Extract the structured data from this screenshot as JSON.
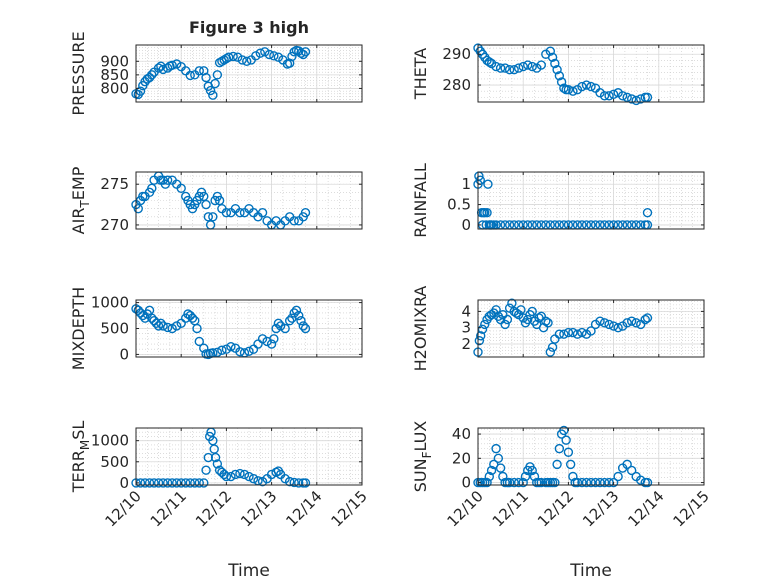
{
  "figure": {
    "title": "Figure 3 high"
  },
  "chart_data": [
    {
      "type": "scatter",
      "panel": "pressure",
      "title": "Figure 3 high",
      "ylabel": "PRESSURE",
      "ylabel_sub": "",
      "ylabel_tail": "",
      "xlabel": "",
      "show_xticklabels": false,
      "xlim": [
        0,
        5
      ],
      "ylim": [
        750,
        960
      ],
      "yticks": [
        800,
        850,
        900
      ],
      "ytick_labels": [
        "800",
        "850",
        "900"
      ],
      "grid": true,
      "color": "#0072BD",
      "series": [
        {
          "x": [
            0.0,
            0.05,
            0.1,
            0.15,
            0.2,
            0.25,
            0.3,
            0.35,
            0.4,
            0.5,
            0.55,
            0.6,
            0.7,
            0.75,
            0.8,
            0.9,
            1.0,
            1.1,
            1.2,
            1.3,
            1.4,
            1.5,
            1.55,
            1.6,
            1.65,
            1.7,
            1.75,
            1.8,
            1.85,
            1.9,
            1.95,
            2.0,
            2.05,
            2.15,
            2.25,
            2.35,
            2.45,
            2.55,
            2.65,
            2.75,
            2.85,
            2.95,
            3.05,
            3.15,
            3.25,
            3.35,
            3.4,
            3.45,
            3.5,
            3.55,
            3.6,
            3.65,
            3.7,
            3.75
          ],
          "y": [
            780,
            778,
            790,
            810,
            825,
            835,
            840,
            850,
            860,
            875,
            882,
            870,
            875,
            882,
            885,
            890,
            880,
            865,
            848,
            850,
            865,
            865,
            840,
            808,
            792,
            775,
            818,
            850,
            895,
            900,
            905,
            910,
            915,
            918,
            915,
            905,
            900,
            905,
            920,
            930,
            935,
            925,
            920,
            915,
            905,
            890,
            893,
            918,
            935,
            940,
            938,
            930,
            925,
            935
          ]
        }
      ]
    },
    {
      "type": "scatter",
      "panel": "theta",
      "title": "",
      "ylabel": "THETA",
      "ylabel_sub": "",
      "ylabel_tail": "",
      "xlabel": "",
      "show_xticklabels": false,
      "xlim": [
        0,
        5
      ],
      "ylim": [
        274.5,
        293
      ],
      "yticks": [
        280,
        290
      ],
      "ytick_labels": [
        "280",
        "290"
      ],
      "grid": true,
      "color": "#0072BD",
      "series": [
        {
          "x": [
            0.0,
            0.05,
            0.1,
            0.15,
            0.2,
            0.25,
            0.3,
            0.4,
            0.5,
            0.6,
            0.7,
            0.8,
            0.9,
            1.0,
            1.1,
            1.2,
            1.3,
            1.4,
            1.5,
            1.6,
            1.65,
            1.7,
            1.75,
            1.8,
            1.85,
            1.9,
            1.95,
            2.0,
            2.1,
            2.2,
            2.3,
            2.4,
            2.5,
            2.6,
            2.7,
            2.8,
            2.9,
            3.0,
            3.1,
            3.2,
            3.3,
            3.4,
            3.5,
            3.6,
            3.7,
            3.75
          ],
          "y": [
            292,
            291,
            290,
            289,
            288,
            287.5,
            287,
            286,
            285.5,
            285.5,
            285,
            285,
            285.5,
            286,
            286.5,
            286,
            285.5,
            286.5,
            290,
            291,
            289,
            287,
            285,
            283,
            281,
            279,
            278.5,
            278.5,
            278,
            278.5,
            279.5,
            280,
            279.5,
            279,
            277.5,
            276.5,
            276.5,
            277,
            277.5,
            276.5,
            276,
            275.5,
            275,
            275.5,
            276,
            276
          ]
        }
      ]
    },
    {
      "type": "scatter",
      "panel": "air_temp",
      "title": "",
      "ylabel": "AIR",
      "ylabel_sub": "T",
      "ylabel_tail": "EMP",
      "xlabel": "",
      "show_xticklabels": false,
      "xlim": [
        0,
        5
      ],
      "ylim": [
        269.5,
        276.5
      ],
      "yticks": [
        270,
        275
      ],
      "ytick_labels": [
        "270",
        "275"
      ],
      "grid": true,
      "color": "#0072BD",
      "series": [
        {
          "x": [
            0.0,
            0.05,
            0.1,
            0.15,
            0.2,
            0.3,
            0.35,
            0.4,
            0.5,
            0.55,
            0.6,
            0.65,
            0.7,
            0.8,
            0.9,
            1.0,
            1.1,
            1.15,
            1.2,
            1.25,
            1.3,
            1.35,
            1.4,
            1.45,
            1.5,
            1.55,
            1.6,
            1.65,
            1.7,
            1.75,
            1.8,
            1.85,
            1.9,
            2.0,
            2.1,
            2.2,
            2.3,
            2.4,
            2.5,
            2.6,
            2.7,
            2.8,
            2.9,
            3.0,
            3.1,
            3.2,
            3.3,
            3.4,
            3.5,
            3.6,
            3.7,
            3.75
          ],
          "y": [
            272.5,
            272,
            273,
            273.5,
            273.5,
            274,
            274.5,
            275.5,
            276,
            275.5,
            275.5,
            275,
            275.5,
            275.5,
            275,
            274.5,
            273.5,
            273,
            272.5,
            272,
            272.5,
            273,
            273.5,
            274,
            273.5,
            272.5,
            271,
            270,
            271,
            273,
            273.5,
            273,
            272,
            271.5,
            271.5,
            272,
            271.5,
            271.5,
            272,
            271.5,
            271,
            271.5,
            270.5,
            270,
            270.5,
            270,
            270.5,
            271,
            270.5,
            270.5,
            271,
            271.5
          ]
        }
      ]
    },
    {
      "type": "scatter",
      "panel": "rainfall",
      "title": "",
      "ylabel": "RAINFALL",
      "ylabel_sub": "",
      "ylabel_tail": "",
      "xlabel": "",
      "show_xticklabels": false,
      "xlim": [
        0,
        5
      ],
      "ylim": [
        -0.1,
        1.3
      ],
      "yticks": [
        0,
        0.5,
        1
      ],
      "ytick_labels": [
        "0",
        "0.5",
        "1"
      ],
      "grid": true,
      "color": "#0072BD",
      "series": [
        {
          "x": [
            0.0,
            0.02,
            0.05,
            0.08,
            0.1,
            0.12,
            0.15,
            0.18,
            0.2,
            0.22,
            0.25,
            0.28,
            0.3,
            0.35,
            0.4,
            0.5,
            0.6,
            0.7,
            0.8,
            0.9,
            1.0,
            1.1,
            1.2,
            1.3,
            1.4,
            1.5,
            1.6,
            1.7,
            1.8,
            1.9,
            2.0,
            2.1,
            2.2,
            2.3,
            2.4,
            2.5,
            2.6,
            2.7,
            2.8,
            2.9,
            3.0,
            3.1,
            3.2,
            3.3,
            3.4,
            3.5,
            3.6,
            3.7,
            3.75,
            3.75
          ],
          "y": [
            1,
            1.2,
            1.1,
            0.3,
            0,
            0.3,
            0.3,
            0,
            0.3,
            1,
            0,
            0,
            0,
            0,
            0,
            0,
            0,
            0,
            0,
            0,
            0,
            0,
            0,
            0,
            0,
            0,
            0,
            0,
            0,
            0,
            0,
            0,
            0,
            0,
            0,
            0,
            0,
            0,
            0,
            0,
            0,
            0,
            0,
            0,
            0,
            0,
            0,
            0,
            0,
            0.3
          ]
        }
      ]
    },
    {
      "type": "scatter",
      "panel": "mixdepth",
      "title": "",
      "ylabel": "MIXDEPTH",
      "ylabel_sub": "",
      "ylabel_tail": "",
      "xlabel": "",
      "show_xticklabels": false,
      "xlim": [
        0,
        5
      ],
      "ylim": [
        -50,
        1050
      ],
      "yticks": [
        0,
        500,
        1000
      ],
      "ytick_labels": [
        "0",
        "500",
        "1000"
      ],
      "grid": true,
      "color": "#0072BD",
      "series": [
        {
          "x": [
            0.0,
            0.05,
            0.1,
            0.15,
            0.2,
            0.25,
            0.3,
            0.35,
            0.4,
            0.45,
            0.5,
            0.55,
            0.6,
            0.7,
            0.8,
            0.9,
            1.0,
            1.1,
            1.15,
            1.2,
            1.25,
            1.3,
            1.35,
            1.4,
            1.5,
            1.55,
            1.6,
            1.65,
            1.7,
            1.8,
            1.9,
            2.0,
            2.1,
            2.2,
            2.3,
            2.4,
            2.5,
            2.6,
            2.7,
            2.8,
            2.9,
            3.0,
            3.05,
            3.1,
            3.15,
            3.2,
            3.3,
            3.4,
            3.45,
            3.5,
            3.55,
            3.6,
            3.65,
            3.7,
            3.75
          ],
          "y": [
            880,
            850,
            800,
            750,
            700,
            780,
            850,
            700,
            650,
            600,
            550,
            600,
            550,
            520,
            500,
            550,
            600,
            700,
            780,
            750,
            700,
            650,
            500,
            250,
            120,
            10,
            0,
            20,
            30,
            40,
            80,
            100,
            150,
            120,
            50,
            30,
            60,
            100,
            200,
            300,
            250,
            200,
            300,
            500,
            600,
            550,
            500,
            650,
            700,
            800,
            850,
            750,
            650,
            550,
            500
          ]
        }
      ]
    },
    {
      "type": "scatter",
      "panel": "h2omixra",
      "title": "",
      "ylabel": "H2OMIXRA",
      "ylabel_sub": "",
      "ylabel_tail": "",
      "xlabel": "",
      "show_xticklabels": false,
      "xlim": [
        0,
        5
      ],
      "ylim": [
        1.2,
        4.7
      ],
      "yticks": [
        2,
        3,
        4
      ],
      "ytick_labels": [
        "2",
        "3",
        "4"
      ],
      "grid": true,
      "color": "#0072BD",
      "series": [
        {
          "x": [
            0.0,
            0.03,
            0.06,
            0.1,
            0.15,
            0.2,
            0.25,
            0.3,
            0.35,
            0.4,
            0.45,
            0.5,
            0.55,
            0.6,
            0.65,
            0.7,
            0.75,
            0.8,
            0.85,
            0.9,
            0.95,
            1.0,
            1.05,
            1.1,
            1.15,
            1.2,
            1.25,
            1.3,
            1.35,
            1.4,
            1.45,
            1.5,
            1.55,
            1.6,
            1.65,
            1.7,
            1.8,
            1.9,
            2.0,
            2.1,
            2.2,
            2.3,
            2.4,
            2.5,
            2.6,
            2.7,
            2.8,
            2.9,
            3.0,
            3.1,
            3.2,
            3.3,
            3.4,
            3.5,
            3.6,
            3.7,
            3.75
          ],
          "y": [
            1.5,
            2.2,
            2.5,
            2.9,
            3.2,
            3.5,
            3.7,
            3.8,
            3.9,
            4.1,
            3.7,
            3.5,
            3.8,
            3.2,
            3.5,
            4.2,
            4.5,
            4.0,
            3.9,
            3.8,
            4.1,
            3.6,
            3.3,
            3.5,
            3.8,
            4.0,
            3.4,
            3.2,
            3.6,
            3.7,
            3.0,
            3.4,
            3.3,
            1.5,
            1.8,
            2.3,
            2.6,
            2.6,
            2.7,
            2.7,
            2.6,
            2.7,
            2.6,
            2.8,
            3.2,
            3.4,
            3.3,
            3.2,
            3.1,
            3.0,
            3.1,
            3.3,
            3.4,
            3.3,
            3.2,
            3.5,
            3.6
          ]
        }
      ]
    },
    {
      "type": "scatter",
      "panel": "terr_msl",
      "title": "",
      "ylabel": "TERR",
      "ylabel_sub": "M",
      "ylabel_tail": "SL",
      "xlabel": "Time",
      "show_xticklabels": true,
      "xlim": [
        0,
        5
      ],
      "ylim": [
        -50,
        1300
      ],
      "yticks": [
        0,
        500,
        1000
      ],
      "ytick_labels": [
        "0",
        "500",
        "1000"
      ],
      "grid": true,
      "color": "#0072BD",
      "series": [
        {
          "x": [
            0.0,
            0.1,
            0.2,
            0.3,
            0.4,
            0.5,
            0.6,
            0.7,
            0.8,
            0.9,
            1.0,
            1.1,
            1.2,
            1.3,
            1.4,
            1.5,
            1.55,
            1.6,
            1.63,
            1.66,
            1.7,
            1.73,
            1.76,
            1.8,
            1.85,
            1.9,
            1.95,
            2.0,
            2.1,
            2.2,
            2.3,
            2.4,
            2.5,
            2.6,
            2.7,
            2.8,
            2.9,
            3.0,
            3.1,
            3.15,
            3.2,
            3.3,
            3.4,
            3.5,
            3.6,
            3.7,
            3.75
          ],
          "y": [
            0,
            0,
            0,
            0,
            0,
            0,
            0,
            0,
            0,
            0,
            0,
            0,
            0,
            0,
            0,
            0,
            300,
            600,
            1100,
            1200,
            1000,
            800,
            600,
            450,
            300,
            250,
            200,
            150,
            150,
            200,
            220,
            200,
            150,
            100,
            50,
            30,
            100,
            200,
            250,
            280,
            200,
            100,
            30,
            10,
            0,
            0,
            0
          ]
        }
      ]
    },
    {
      "type": "scatter",
      "panel": "sun_flux",
      "title": "",
      "ylabel": "SUN",
      "ylabel_sub": "F",
      "ylabel_tail": "LUX",
      "xlabel": "Time",
      "show_xticklabels": true,
      "xlim": [
        0,
        5
      ],
      "ylim": [
        -2,
        45
      ],
      "yticks": [
        0,
        20,
        40
      ],
      "ytick_labels": [
        "0",
        "20",
        "40"
      ],
      "grid": true,
      "color": "#0072BD",
      "series": [
        {
          "x": [
            0.0,
            0.05,
            0.1,
            0.15,
            0.2,
            0.25,
            0.3,
            0.35,
            0.4,
            0.45,
            0.5,
            0.55,
            0.6,
            0.65,
            0.7,
            0.8,
            0.9,
            1.0,
            1.05,
            1.1,
            1.15,
            1.2,
            1.25,
            1.3,
            1.35,
            1.4,
            1.5,
            1.55,
            1.6,
            1.65,
            1.7,
            1.75,
            1.8,
            1.85,
            1.9,
            1.95,
            2.0,
            2.05,
            2.1,
            2.15,
            2.2,
            2.3,
            2.4,
            2.5,
            2.6,
            2.7,
            2.8,
            2.9,
            3.0,
            3.1,
            3.2,
            3.3,
            3.4,
            3.5,
            3.6,
            3.7,
            3.75
          ],
          "y": [
            0,
            0,
            0,
            0,
            0,
            5,
            10,
            15,
            28,
            20,
            12,
            5,
            0,
            0,
            0,
            0,
            0,
            0,
            5,
            10,
            13,
            10,
            5,
            0,
            0,
            0,
            0,
            0,
            0,
            0,
            0,
            15,
            28,
            40,
            43,
            35,
            25,
            15,
            5,
            0,
            0,
            0,
            0,
            0,
            0,
            0,
            0,
            0,
            0,
            5,
            12,
            15,
            10,
            5,
            2,
            0,
            0
          ]
        }
      ]
    }
  ],
  "x_axis": {
    "ticks": [
      0,
      1,
      2,
      3,
      4,
      5
    ],
    "tick_labels": [
      "12/10",
      "12/11",
      "12/12",
      "12/13",
      "12/14",
      "12/15"
    ]
  }
}
